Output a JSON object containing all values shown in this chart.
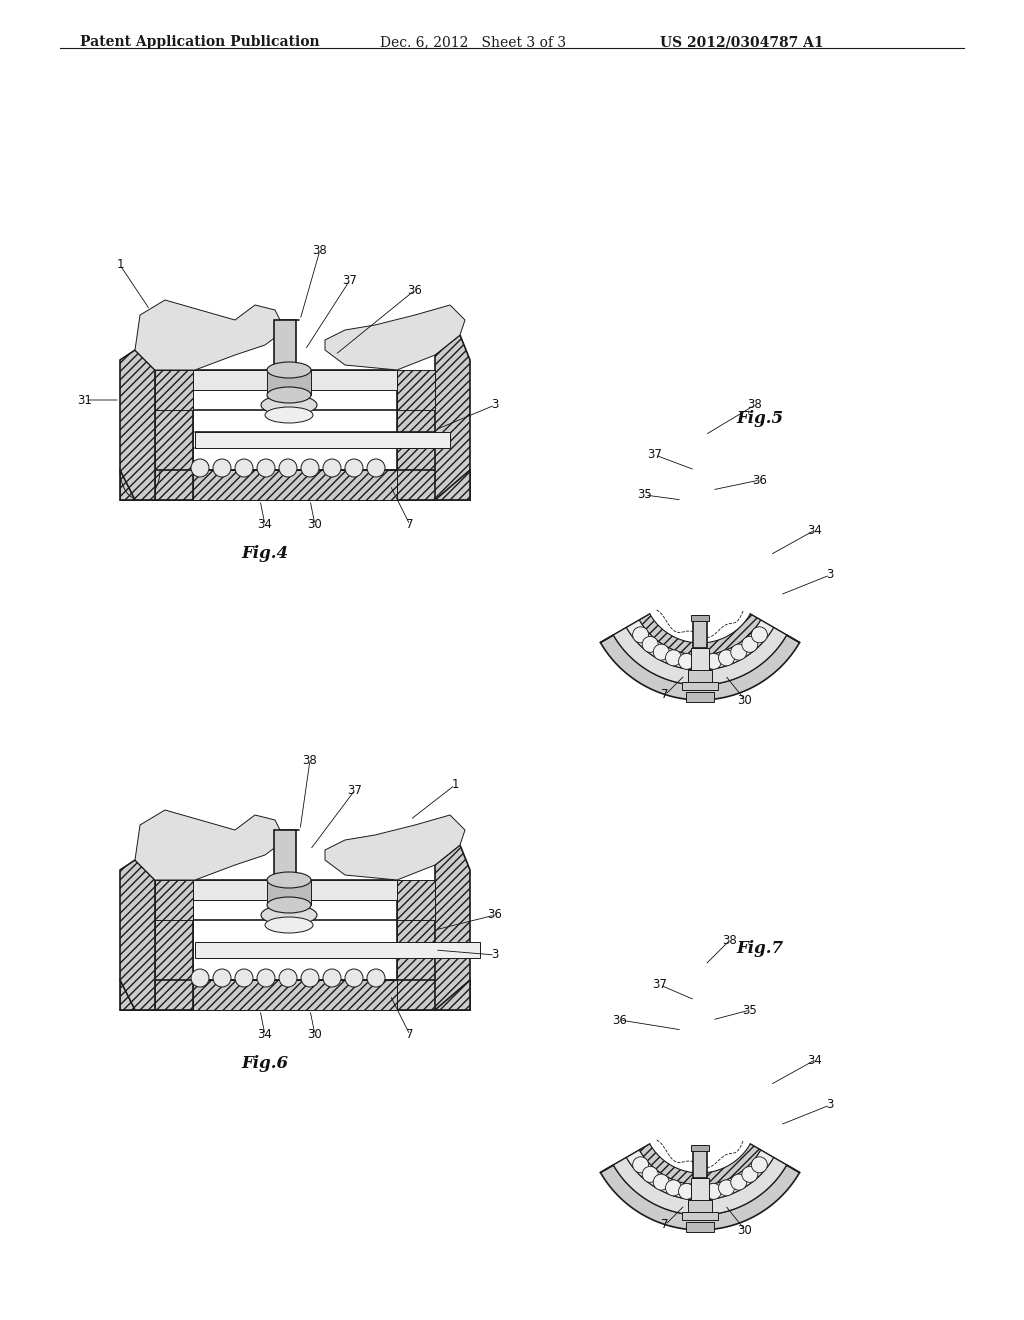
{
  "background_color": "#ffffff",
  "header_text_left": "Patent Application Publication",
  "header_text_mid": "Dec. 6, 2012   Sheet 3 of 3",
  "header_text_right": "US 2012/0304787 A1",
  "fig4_label": "Fig.4",
  "fig5_label": "Fig.5",
  "fig6_label": "Fig.6",
  "fig7_label": "Fig.7",
  "line_color": "#1a1a1a",
  "hatch_color": "#333333",
  "light_gray": "#e8e8e8",
  "mid_gray": "#c8c8c8",
  "dark_gray": "#888888",
  "header_font_size": 10,
  "label_font_size": 12,
  "ref_font_size": 8.5
}
